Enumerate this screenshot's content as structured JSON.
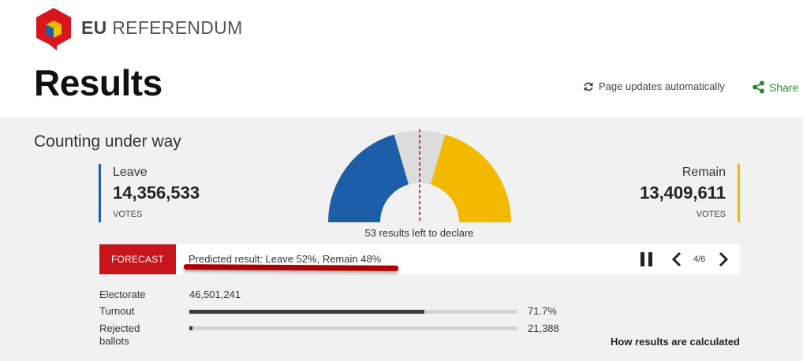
{
  "header": {
    "brand_bold": "EU",
    "brand_rest": "REFERENDUM",
    "title": "Results",
    "auto_update": "Page updates automatically",
    "share": "Share"
  },
  "summary": {
    "status": "Counting under way",
    "left_to_declare": "53 results left to declare",
    "leave": {
      "label": "Leave",
      "count": "14,356,533",
      "unit": "VOTES",
      "color": "#1c5fa8",
      "gauge_share": 0.41
    },
    "remain": {
      "label": "Remain",
      "count": "13,409,611",
      "unit": "VOTES",
      "color": "#f3b800",
      "gauge_share": 0.41
    },
    "undeclared_color": "#dcdcdc",
    "midline_color": "#b10000"
  },
  "forecast": {
    "tag": "FORECAST",
    "text": "Predicted result: Leave 52%, Remain 48%",
    "page": "4/6",
    "tag_color": "#c8151b",
    "icons": {
      "pause": "pause-icon",
      "prev": "chevron-left-icon",
      "next": "chevron-right-icon"
    }
  },
  "stats": {
    "electorate": {
      "label": "Electorate",
      "value": "46,501,241"
    },
    "turnout": {
      "label": "Turnout",
      "value": "71.7%",
      "fraction": 0.717
    },
    "rejected": {
      "label_line1": "Rejected",
      "label_line2": "ballots",
      "value": "21,388",
      "fraction": 0.01
    },
    "how_link": "How results are calculated"
  },
  "colors": {
    "share": "#2d8a36",
    "panel": "#f1f1f1"
  }
}
